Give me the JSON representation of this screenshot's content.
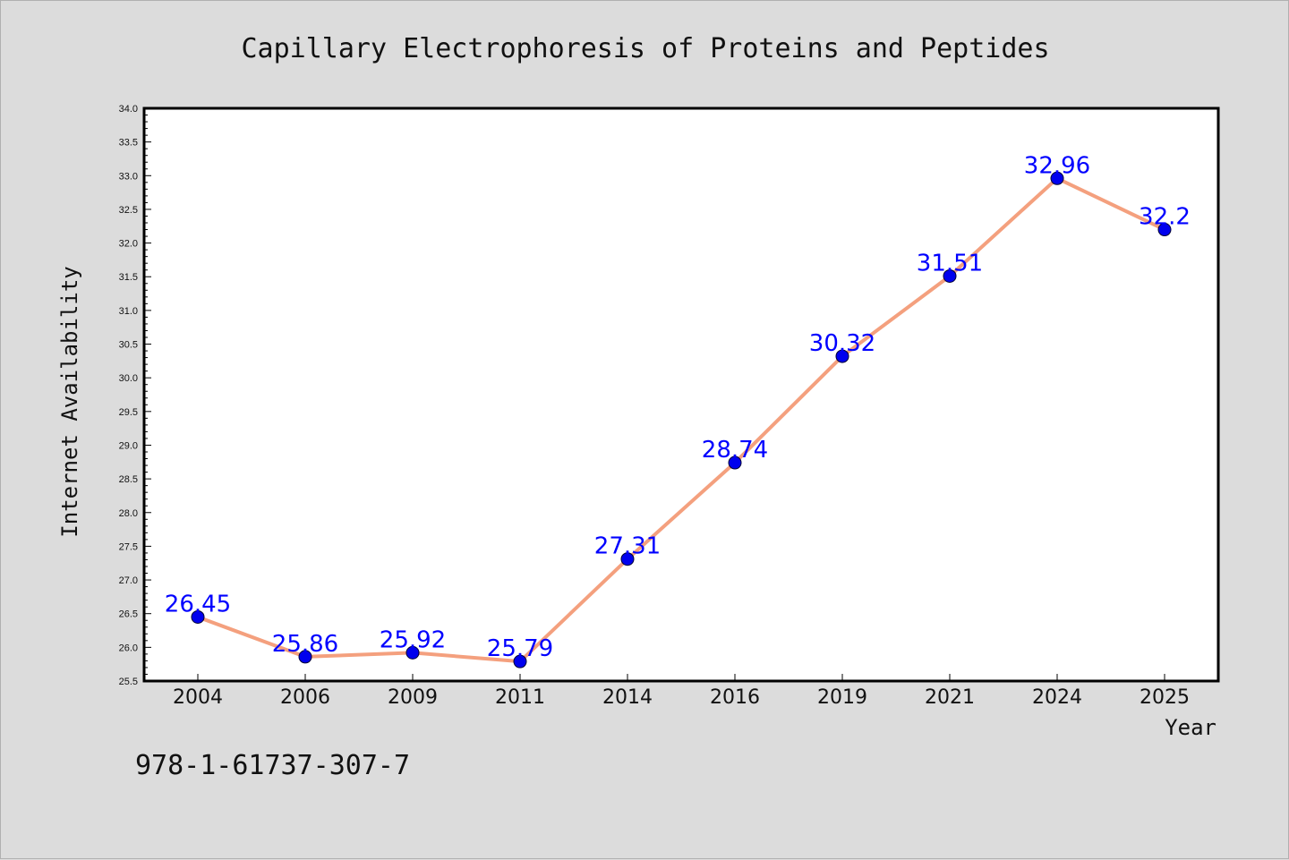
{
  "chart_data": {
    "type": "line",
    "title": "Capillary Electrophoresis of Proteins and Peptides",
    "xlabel": "Year",
    "ylabel": "Internet Availability",
    "categories": [
      "2004",
      "2006",
      "2009",
      "2011",
      "2014",
      "2016",
      "2019",
      "2021",
      "2024",
      "2025"
    ],
    "series": [
      {
        "values": [
          26.45,
          25.86,
          25.92,
          25.79,
          27.31,
          28.74,
          30.32,
          31.51,
          32.96,
          32.2
        ],
        "labels": [
          "26.45",
          "25.86",
          "25.92",
          "25.79",
          "27.31",
          "28.74",
          "30.32",
          "31.51",
          "32.96",
          "32.2"
        ]
      }
    ],
    "ylim": [
      25.5,
      34.0
    ],
    "yticks": [
      "25.5",
      "26.0",
      "26.5",
      "27.0",
      "27.5",
      "28.0",
      "28.5",
      "29.0",
      "29.5",
      "30.0",
      "30.5",
      "31.0",
      "31.5",
      "32.0",
      "32.5",
      "33.0",
      "33.5",
      "34.0"
    ],
    "grid": false,
    "colors": {
      "line": "#f4a07e",
      "marker": "#0000ee",
      "label": "#0000ff",
      "plot_bg": "#ffffff",
      "page_bg": "#dcdcdc"
    }
  },
  "footnote": "978-1-61737-307-7"
}
